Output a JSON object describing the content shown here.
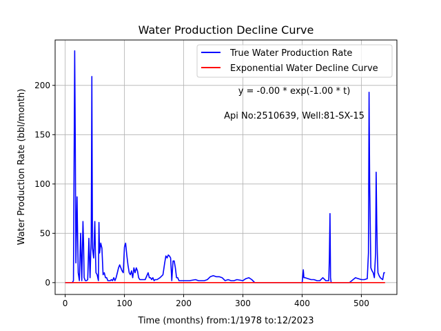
{
  "chart_data": {
    "type": "line",
    "title": "Water Production Decline Curve",
    "xlabel": "Time (months) from:1/1978 to:12/2023",
    "ylabel": "Water Production Rate (bbl/month)",
    "xlim": [
      -17,
      560
    ],
    "ylim": [
      -12,
      246
    ],
    "xticks": [
      0,
      100,
      200,
      300,
      400,
      500
    ],
    "yticks": [
      0,
      50,
      100,
      150,
      200
    ],
    "grid": true,
    "legend_position": "top-right",
    "annotations": [
      "y = -0.00 * exp(-1.00 * t)",
      "Api No:2510639, Well:81-SX-15"
    ],
    "series": [
      {
        "name": "True Water Production Rate",
        "color": "#0000ff",
        "x": [
          0,
          12,
          14,
          16,
          17,
          18,
          20,
          22,
          24,
          26,
          28,
          30,
          31,
          32,
          34,
          36,
          38,
          40,
          42,
          44,
          45,
          46,
          48,
          50,
          51,
          52,
          54,
          56,
          57,
          58,
          60,
          62,
          64,
          66,
          68,
          70,
          72,
          74,
          76,
          78,
          80,
          82,
          84,
          86,
          88,
          90,
          92,
          94,
          96,
          98,
          100,
          101,
          102,
          104,
          106,
          108,
          110,
          112,
          114,
          116,
          118,
          120,
          122,
          124,
          126,
          128,
          130,
          135,
          140,
          142,
          144,
          146,
          148,
          150,
          152,
          155,
          160,
          165,
          168,
          170,
          172,
          174,
          176,
          178,
          180,
          182,
          184,
          186,
          188,
          190,
          192,
          195,
          200,
          210,
          220,
          225,
          230,
          235,
          240,
          245,
          250,
          255,
          260,
          265,
          270,
          275,
          280,
          285,
          290,
          300,
          305,
          310,
          315,
          320,
          330,
          350,
          380,
          400,
          402,
          403,
          405,
          410,
          415,
          420,
          425,
          430,
          435,
          440,
          445,
          446,
          447,
          448,
          449,
          450,
          460,
          470,
          480,
          490,
          495,
          500,
          505,
          510,
          512,
          513,
          514,
          516,
          518,
          520,
          522,
          524,
          525,
          526,
          527,
          528,
          530,
          532,
          534,
          536,
          538,
          540
        ],
        "y": [
          0,
          0,
          2,
          235,
          150,
          20,
          87,
          10,
          2,
          50,
          2,
          62,
          40,
          5,
          2,
          2,
          3,
          45,
          5,
          47,
          209,
          35,
          25,
          62,
          30,
          10,
          8,
          2,
          61,
          30,
          40,
          35,
          8,
          10,
          5,
          5,
          2,
          2,
          2,
          3,
          2,
          5,
          2,
          5,
          10,
          15,
          18,
          15,
          12,
          10,
          36,
          38,
          40,
          28,
          18,
          10,
          8,
          12,
          5,
          15,
          10,
          15,
          12,
          5,
          3,
          3,
          3,
          3,
          10,
          5,
          5,
          3,
          5,
          2,
          3,
          3,
          5,
          8,
          20,
          27,
          25,
          28,
          27,
          25,
          2,
          22,
          22,
          15,
          5,
          5,
          2,
          2,
          2,
          2,
          3,
          2,
          2,
          2,
          3,
          6,
          7,
          6,
          6,
          5,
          2,
          3,
          2,
          2,
          3,
          2,
          4,
          5,
          3,
          0,
          0,
          0,
          0,
          0,
          13,
          5,
          5,
          4,
          3,
          3,
          2,
          2,
          5,
          2,
          2,
          25,
          70,
          5,
          0,
          0,
          0,
          0,
          0,
          5,
          4,
          3,
          3,
          4,
          30,
          193,
          100,
          15,
          12,
          10,
          5,
          30,
          112,
          60,
          30,
          10,
          7,
          5,
          4,
          3,
          10,
          10
        ]
      },
      {
        "name": "Exponential Water Decline Curve",
        "color": "#ff0000",
        "x": [
          0,
          540
        ],
        "y": [
          0,
          0
        ]
      }
    ]
  }
}
